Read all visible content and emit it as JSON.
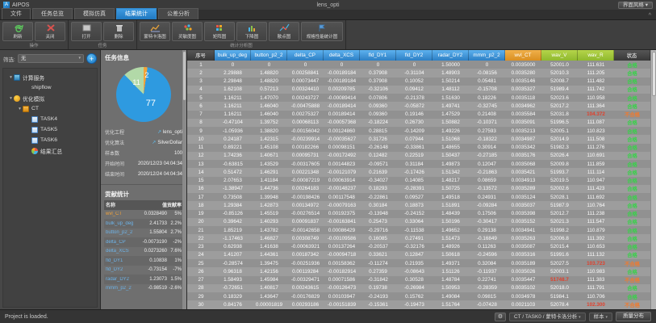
{
  "titlebar": {
    "app": "AIPOS",
    "doc": "lens_opti",
    "style_button": "界面风格 ▾"
  },
  "tabs": [
    {
      "label": "文件"
    },
    {
      "label": "任务总览"
    },
    {
      "label": "模拟仿真"
    },
    {
      "label": "结果统计",
      "active": true
    },
    {
      "label": "公差分析"
    }
  ],
  "ribbon": {
    "collapse_icon": "^",
    "groups": [
      {
        "caption": "操作",
        "buttons": [
          {
            "label": "刷新",
            "icon": "refresh"
          },
          {
            "label": "关闭",
            "icon": "close"
          }
        ]
      },
      {
        "caption": "任务",
        "buttons": [
          {
            "label": "打开",
            "icon": "open"
          },
          {
            "label": "删除",
            "icon": "trash"
          }
        ]
      },
      {
        "caption": "统计分析图",
        "buttons": [
          {
            "label": "蒙特卡洛图",
            "icon": "line"
          },
          {
            "label": "灵敏度图",
            "icon": "scatter"
          },
          {
            "label": "矩阵图",
            "icon": "heatmap"
          },
          {
            "label": "下降图",
            "icon": "bars"
          },
          {
            "label": "散点图",
            "icon": "points"
          },
          {
            "label": "规格性能统计图",
            "icon": "flag",
            "wide": true
          }
        ]
      }
    ]
  },
  "sidebar": {
    "filter_label": "筛选:",
    "filter_value": "无",
    "filter_caret": "▾",
    "add_button": "+",
    "tree": [
      {
        "label": "计算服务",
        "icon": "server",
        "level": 0,
        "expander": "▾"
      },
      {
        "label": "shipflow",
        "icon": "none",
        "level": 1,
        "expander": ""
      },
      {
        "label": "优化模拟",
        "icon": "opt",
        "level": 0,
        "expander": "▾"
      },
      {
        "label": "CT",
        "icon": "folder",
        "level": 1,
        "expander": "▾"
      },
      {
        "label": "TASK4",
        "icon": "doc",
        "level": 2,
        "expander": ""
      },
      {
        "label": "TASK5",
        "icon": "doc",
        "level": 2,
        "expander": ""
      },
      {
        "label": "TASK6",
        "icon": "doc",
        "level": 2,
        "expander": ""
      },
      {
        "label": "结果汇总",
        "icon": "chart",
        "level": 2,
        "expander": ""
      }
    ]
  },
  "info_panel": {
    "title": "任务信息",
    "pie": {
      "slices": [
        {
          "label": "2",
          "value": 2,
          "color": "#f2a33a"
        },
        {
          "label": "77",
          "value": 77,
          "color": "#2e9ae0"
        },
        {
          "label": "11",
          "value": 11,
          "color": "#b2d9a8"
        }
      ]
    },
    "fields": [
      {
        "label": "优化工程",
        "value": "lens_opti",
        "link": true
      },
      {
        "label": "优化算法",
        "value": "SilverDollar",
        "link": true
      },
      {
        "label": "样本数",
        "value": "100"
      },
      {
        "label": "开始时间",
        "value": "2020/12/23 04:04:34"
      },
      {
        "label": "结束时间",
        "value": "2020/12/24 04:04:34"
      }
    ]
  },
  "contrib_panel": {
    "title": "贡献统计",
    "headers": [
      "名称",
      "值",
      "贡献率"
    ],
    "rows": [
      {
        "name": "wvl_CT",
        "color": "#f2a33a",
        "value": "0.0328490",
        "pct": "5%"
      },
      {
        "name": "bulk_up_deg",
        "color": "#6db3e8",
        "value": "2.41733",
        "pct": "2.2%"
      },
      {
        "name": "button_p2_2",
        "color": "#6db3e8",
        "value": "1.55804",
        "pct": "2.7%"
      },
      {
        "name": "delta_CP",
        "color": "#6db3e8",
        "value": "-0.0073190",
        "pct": "-2%"
      },
      {
        "name": "delta_XCS",
        "color": "#6db3e8",
        "value": "0.0273260",
        "pct": "7.6%"
      },
      {
        "name": "fld_DY1",
        "color": "#6db3e8",
        "value": "0.10838",
        "pct": "1%"
      },
      {
        "name": "fld_DY2",
        "color": "#6db3e8",
        "value": "-0.73154",
        "pct": "-7%"
      },
      {
        "name": "radar_DY2",
        "color": "#6db3e8",
        "value": "1.23073",
        "pct": "1.5%"
      },
      {
        "name": "mmm_p2_2",
        "color": "#6db3e8",
        "value": "-0.98519",
        "pct": "-2.6%"
      }
    ]
  },
  "table": {
    "headers": [
      {
        "label": "序号",
        "type": "dark"
      },
      {
        "label": "bulk_up_deg",
        "type": "blue"
      },
      {
        "label": "button_p2_2",
        "type": "blue"
      },
      {
        "label": "delta_CP",
        "type": "blue"
      },
      {
        "label": "delta_XCS",
        "type": "blue"
      },
      {
        "label": "fld_DY1",
        "type": "blue"
      },
      {
        "label": "fld_DY2",
        "type": "blue"
      },
      {
        "label": "radar_DY2",
        "type": "blue"
      },
      {
        "label": "mmm_p2_2",
        "type": "blue"
      },
      {
        "label": "wvl_CT",
        "type": "orange"
      },
      {
        "label": "wav_V",
        "type": "green"
      },
      {
        "label": "wav_R",
        "type": "green"
      },
      {
        "label": "状态",
        "type": "dark"
      }
    ],
    "status_ok": "合格",
    "status_fail": "不合格",
    "rows": [
      {
        "cells": [
          "0",
          "0",
          "0",
          "0",
          "0",
          "0",
          "1.50000",
          "0",
          "0.0035000",
          "52001.0",
          "111.631"
        ],
        "ok": true,
        "red": []
      },
      {
        "cells": [
          "2.29888",
          "1.48820",
          "0.00258841",
          "-0.00189184",
          "0.37908",
          "-0.31104",
          "1.48903",
          "-0.08156",
          "0.0035280",
          "52010.3",
          "111.205"
        ],
        "ok": true,
        "red": []
      },
      {
        "cells": [
          "2.29848",
          "1.48820",
          "0.00073447",
          "-0.00189184",
          "0.37908",
          "0.10052",
          "1.50214",
          "0.05481",
          "0.0035146",
          "52008.7",
          "111.482"
        ],
        "ok": true,
        "red": []
      },
      {
        "cells": [
          "1.62108",
          "0.57213",
          "0.00324410",
          "0.00209785",
          "-0.32106",
          "0.09412",
          "1.48112",
          "-0.15708",
          "0.0035327",
          "51989.4",
          "111.742"
        ],
        "ok": true,
        "red": []
      },
      {
        "cells": [
          "1.16211",
          "1.47070",
          "0.00243727",
          "-0.00089414",
          "0.07806",
          "-0.21378",
          "1.51630",
          "0.18226",
          "0.0035118",
          "52023.6",
          "110.958"
        ],
        "ok": true,
        "red": []
      },
      {
        "cells": [
          "1.16211",
          "1.46040",
          "-0.00475888",
          "-0.00189414",
          "0.09360",
          "-0.05872",
          "1.49741",
          "-0.32745",
          "0.0034962",
          "52017.2",
          "111.364"
        ],
        "ok": true,
        "red": []
      },
      {
        "cells": [
          "1.16211",
          "1.46040",
          "0.00275327",
          "0.00189414",
          "0.09360",
          "0.19146",
          "1.47529",
          "0.21408",
          "0.0035584",
          "52031.8",
          "104.372"
        ],
        "ok": false,
        "red": [
          10
        ]
      },
      {
        "cells": [
          "-0.47104",
          "1.39752",
          "0.00068113",
          "-0.00057368",
          "-0.18224",
          "0.26730",
          "1.50882",
          "-0.10371",
          "0.0035091",
          "51996.5",
          "111.087"
        ],
        "ok": true,
        "red": []
      },
      {
        "cells": [
          "-1.05936",
          "1.38820",
          "-0.00156042",
          "0.00124860",
          "0.28815",
          "-0.14209",
          "1.49226",
          "0.27593",
          "0.0035213",
          "52005.1",
          "110.823"
        ],
        "ok": true,
        "red": []
      },
      {
        "cells": [
          "0.24187",
          "1.42315",
          "-0.00239914",
          "-0.00035627",
          "0.31726",
          "0.07944",
          "1.51068",
          "-0.18322",
          "0.0034987",
          "52014.9",
          "111.508"
        ],
        "ok": true,
        "red": []
      },
      {
        "cells": [
          "0.89221",
          "1.45108",
          "0.00182266",
          "0.00098151",
          "-0.26148",
          "-0.33861",
          "1.48655",
          "0.30914",
          "0.0035342",
          "51982.3",
          "111.276"
        ],
        "ok": true,
        "red": []
      },
      {
        "cells": [
          "1.74236",
          "1.40671",
          "0.00095731",
          "-0.00172492",
          "0.12482",
          "0.22519",
          "1.50437",
          "-0.27185",
          "0.0035176",
          "52026.4",
          "110.691"
        ],
        "ok": true,
        "red": []
      },
      {
        "cells": [
          "-0.63815",
          "1.43529",
          "-0.00317605",
          "0.00144823",
          "-0.09571",
          "0.31184",
          "1.49873",
          "0.12047",
          "0.0035068",
          "52009.8",
          "111.859"
        ],
        "ok": true,
        "red": []
      },
      {
        "cells": [
          "0.51472",
          "1.46291",
          "0.00221348",
          "-0.00121079",
          "0.21639",
          "-0.17426",
          "1.51342",
          "-0.21863",
          "0.0035421",
          "51993.7",
          "111.114"
        ],
        "ok": true,
        "red": []
      },
      {
        "cells": [
          "2.07653",
          "1.41184",
          "-0.00087219",
          "0.00063914",
          "-0.34027",
          "0.14085",
          "1.48217",
          "0.08659",
          "0.0034913",
          "52019.5",
          "110.947"
        ],
        "ok": true,
        "red": []
      },
      {
        "cells": [
          "-1.38947",
          "1.44736",
          "0.00264183",
          "-0.00148237",
          "0.18293",
          "-0.28391",
          "1.50725",
          "-0.13572",
          "0.0035289",
          "52002.6",
          "111.423"
        ],
        "ok": true,
        "red": []
      },
      {
        "cells": [
          "0.73508",
          "1.39948",
          "-0.00198426",
          "0.00117548",
          "-0.22861",
          "0.09527",
          "1.49518",
          "0.24931",
          "0.0035124",
          "52028.1",
          "111.692"
        ],
        "ok": true,
        "red": []
      },
      {
        "cells": [
          "1.29384",
          "1.42873",
          "0.00134972",
          "-0.00079163",
          "0.30184",
          "0.18873",
          "1.51891",
          "-0.09284",
          "0.0035037",
          "51987.9",
          "110.764"
        ],
        "ok": true,
        "red": []
      },
      {
        "cells": [
          "-0.85126",
          "1.45519",
          "-0.00276514",
          "0.00192375",
          "-0.13948",
          "-0.24152",
          "1.48439",
          "0.17506",
          "0.0035398",
          "52012.7",
          "111.238"
        ],
        "ok": true,
        "red": []
      },
      {
        "cells": [
          "0.39642",
          "1.40293",
          "0.00091837",
          "-0.00163841",
          "0.25473",
          "0.33064",
          "1.50196",
          "-0.30417",
          "0.0035152",
          "52021.3",
          "111.547"
        ],
        "ok": true,
        "red": []
      },
      {
        "cells": [
          "1.85219",
          "1.43782",
          "-0.00142658",
          "0.00086429",
          "-0.29716",
          "-0.11538",
          "1.49652",
          "0.29138",
          "0.0034941",
          "51998.2",
          "110.879"
        ],
        "ok": true,
        "red": []
      },
      {
        "cells": [
          "-1.17463",
          "1.46827",
          "0.00308749",
          "-0.00109586",
          "0.16085",
          "0.27491",
          "1.51473",
          "-0.16849",
          "0.0035263",
          "52006.8",
          "111.392"
        ],
        "ok": true,
        "red": []
      },
      {
        "cells": [
          "0.62938",
          "1.41638",
          "-0.00063921",
          "0.00137264",
          "-0.20537",
          "-0.32176",
          "1.48926",
          "0.11263",
          "0.0035087",
          "52015.4",
          "110.653"
        ],
        "ok": true,
        "red": []
      },
      {
        "cells": [
          "1.41207",
          "1.44361",
          "0.00187342",
          "-0.00094718",
          "0.33621",
          "0.12847",
          "1.50618",
          "-0.24596",
          "0.0035316",
          "51991.6",
          "111.132"
        ],
        "ok": true,
        "red": []
      },
      {
        "cells": [
          "-0.28574",
          "1.39475",
          "-0.00251936",
          "0.00158362",
          "-0.11274",
          "0.21935",
          "1.49371",
          "0.32084",
          "0.0035189",
          "52027.5",
          "103.723"
        ],
        "ok": false,
        "red": [
          10
        ]
      },
      {
        "cells": [
          "0.96318",
          "1.42156",
          "0.00119284",
          "-0.00182914",
          "0.27359",
          "-0.08643",
          "1.51126",
          "-0.11937",
          "0.0035026",
          "52003.1",
          "110.983"
        ],
        "ok": true,
        "red": []
      },
      {
        "cells": [
          "1.58493",
          "1.45984",
          "-0.00329471",
          "0.00071586",
          "-0.31842",
          "0.30528",
          "1.48784",
          "0.22741",
          "0.0035447",
          "51748.7",
          "111.383"
        ],
        "ok": false,
        "red": [
          9
        ]
      },
      {
        "cells": [
          "-0.72651",
          "1.40817",
          "0.00243615",
          "-0.00126473",
          "0.19738",
          "-0.26984",
          "1.50953",
          "-0.28359",
          "0.0035102",
          "52018.0",
          "111.791"
        ],
        "ok": true,
        "red": []
      },
      {
        "cells": [
          "0.18329",
          "1.43647",
          "-0.00176829",
          "0.00103947",
          "-0.24193",
          "0.15762",
          "1.49084",
          "0.09815",
          "0.0034978",
          "51984.1",
          "110.706"
        ],
        "ok": true,
        "red": []
      },
      {
        "cells": [
          "0.84176",
          "0.00001819",
          "0.00293186",
          "-0.00151839",
          "-0.15361",
          "-0.19473",
          "1.51764",
          "-0.07428",
          "0.0021103",
          "52078.4",
          "102.300"
        ],
        "ok": false,
        "red": [
          10
        ]
      }
    ]
  },
  "statusbar": {
    "message": "Project is loaded.",
    "gear_icon": "⚙",
    "breadcrumb": "CT / TASK0 / 蒙特卡洛分析",
    "breadcrumb_caret": "▾",
    "sample_drop": "样本",
    "sample_caret": "▾",
    "button": "质量分布"
  }
}
